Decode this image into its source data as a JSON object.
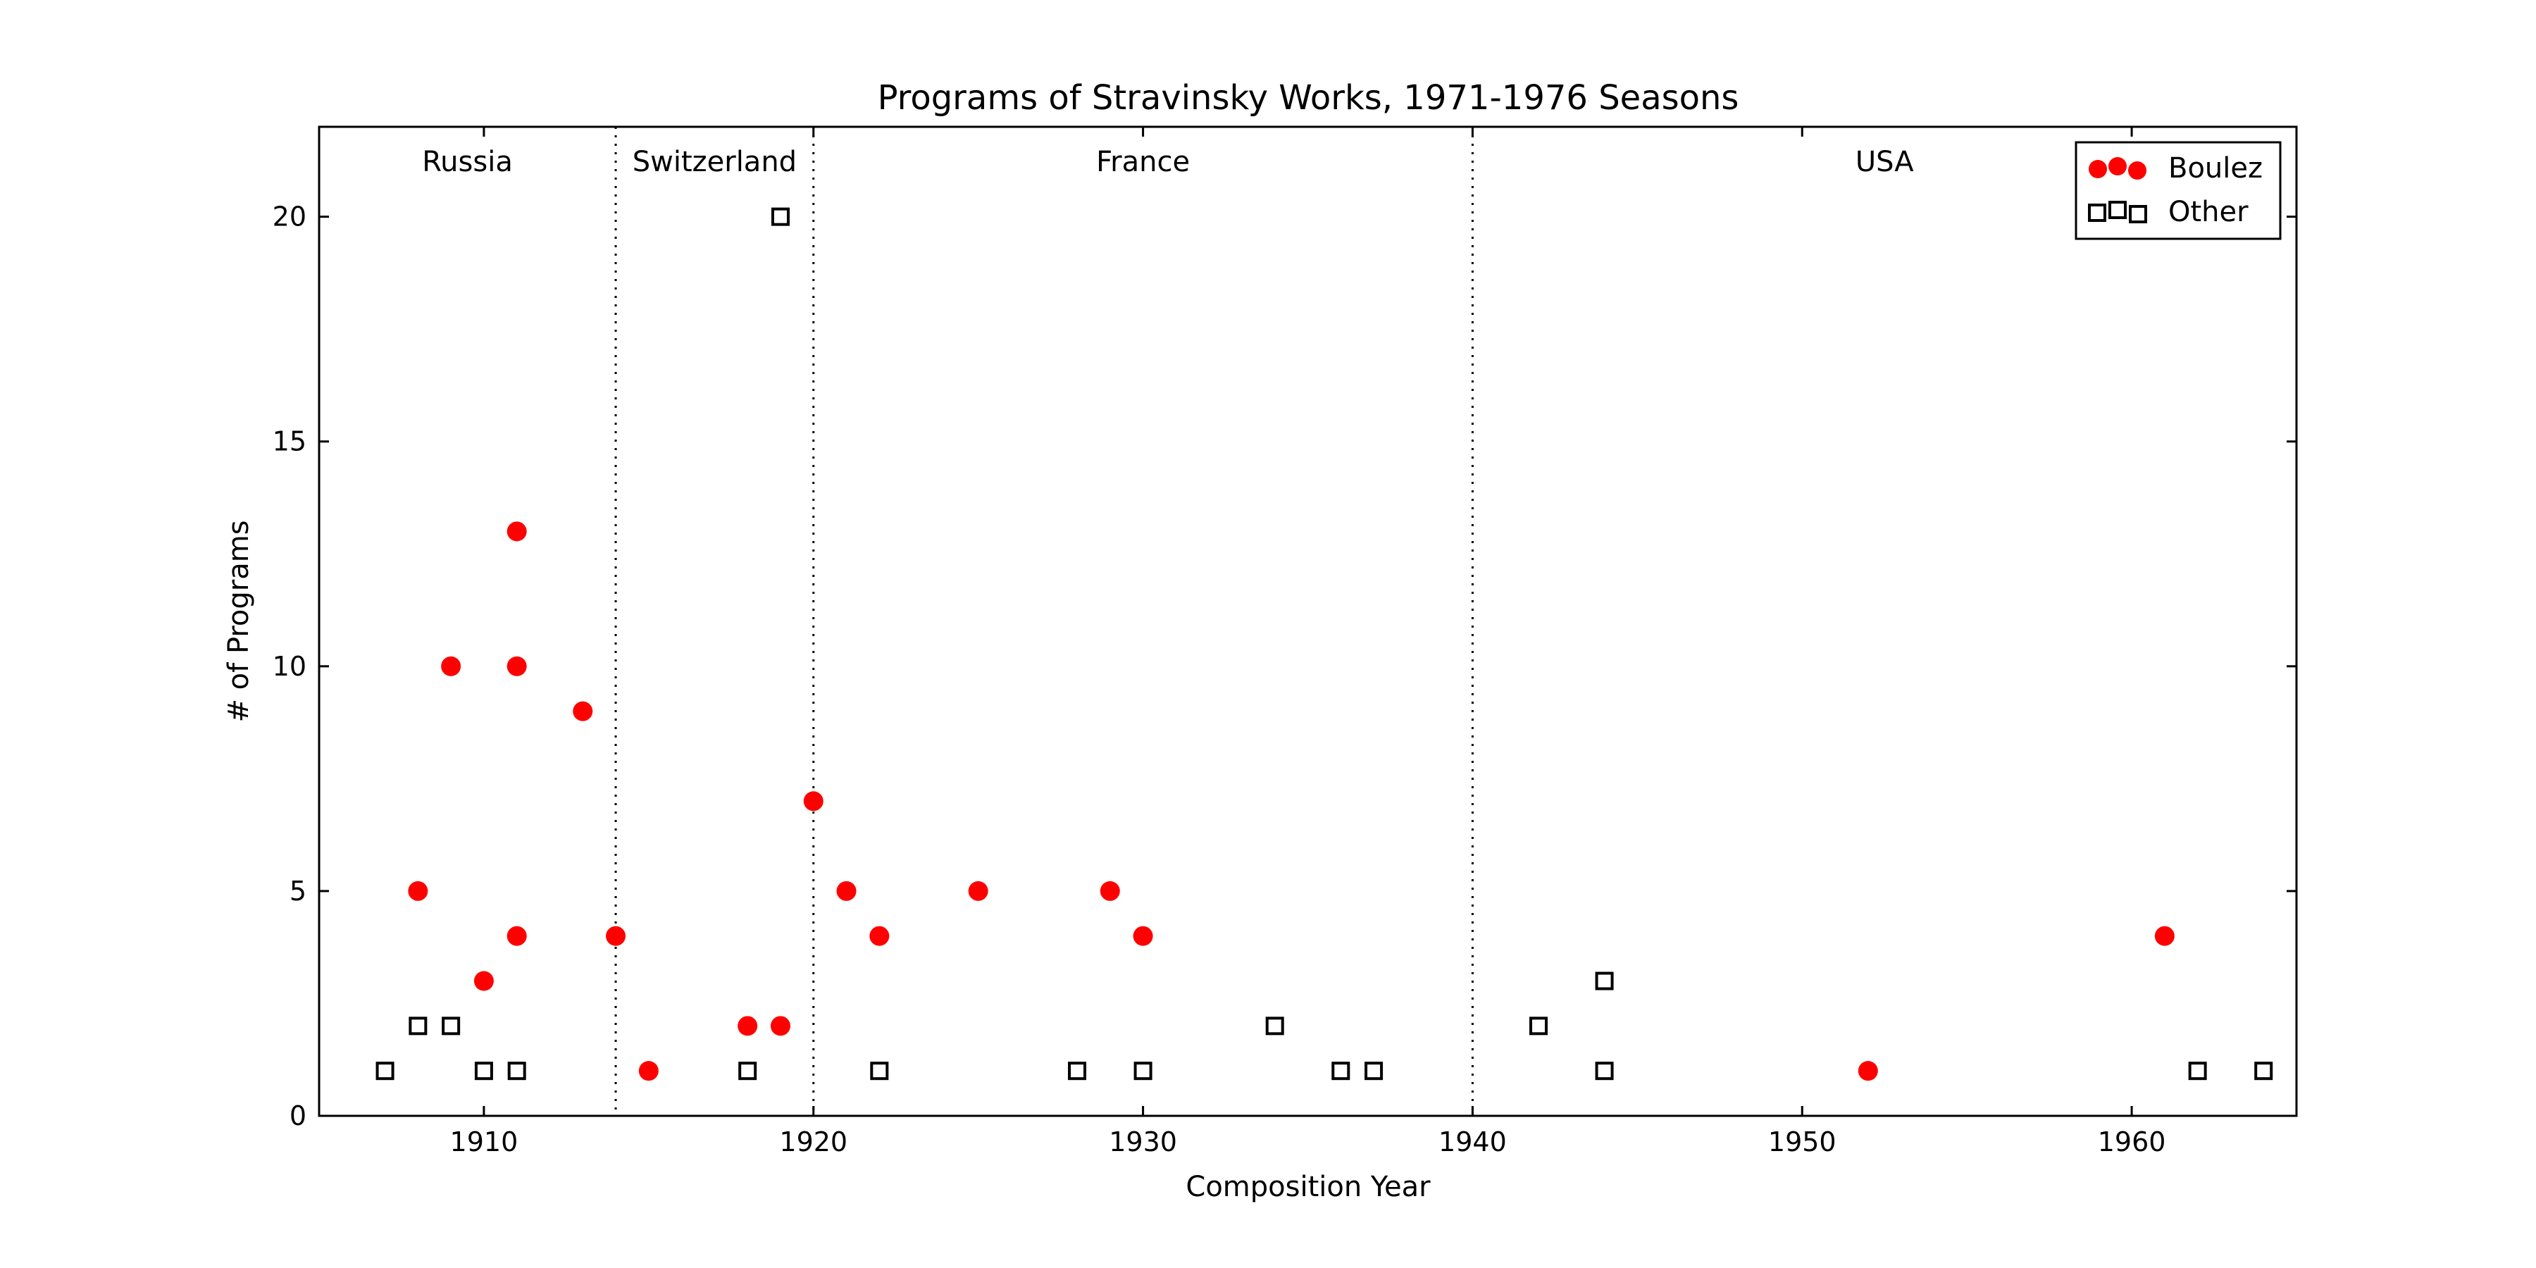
{
  "chart_data": {
    "type": "scatter",
    "title": "Programs of Stravinsky Works, 1971-1976 Seasons",
    "xlabel": "Composition Year",
    "ylabel": "# of Programs",
    "xlim": [
      1905,
      1965
    ],
    "ylim": [
      0,
      22
    ],
    "xticks": [
      1910,
      1920,
      1930,
      1940,
      1950,
      1960
    ],
    "yticks": [
      0,
      5,
      10,
      15,
      20
    ],
    "grid": false,
    "legend": "top-right",
    "period_dividers": [
      1914,
      1920,
      1940
    ],
    "periods": [
      {
        "label": "Russia",
        "x": 1909.5
      },
      {
        "label": "Switzerland",
        "x": 1917
      },
      {
        "label": "France",
        "x": 1930
      },
      {
        "label": "USA",
        "x": 1952.5
      }
    ],
    "series": [
      {
        "name": "Boulez",
        "marker": "circle",
        "color": "#ff0000",
        "points": [
          [
            1908,
            5
          ],
          [
            1909,
            10
          ],
          [
            1910,
            3
          ],
          [
            1911,
            13
          ],
          [
            1911,
            10
          ],
          [
            1911,
            4
          ],
          [
            1913,
            9
          ],
          [
            1914,
            4
          ],
          [
            1915,
            1
          ],
          [
            1918,
            2
          ],
          [
            1919,
            2
          ],
          [
            1920,
            7
          ],
          [
            1921,
            5
          ],
          [
            1922,
            4
          ],
          [
            1925,
            5
          ],
          [
            1929,
            5
          ],
          [
            1930,
            4
          ],
          [
            1952,
            1
          ],
          [
            1961,
            4
          ]
        ]
      },
      {
        "name": "Other",
        "marker": "square",
        "color": "#000000",
        "points": [
          [
            1907,
            1
          ],
          [
            1908,
            2
          ],
          [
            1909,
            2
          ],
          [
            1910,
            1
          ],
          [
            1911,
            1
          ],
          [
            1918,
            1
          ],
          [
            1919,
            20
          ],
          [
            1922,
            1
          ],
          [
            1928,
            1
          ],
          [
            1930,
            1
          ],
          [
            1934,
            2
          ],
          [
            1936,
            1
          ],
          [
            1937,
            1
          ],
          [
            1942,
            2
          ],
          [
            1944,
            3
          ],
          [
            1944,
            1
          ],
          [
            1962,
            1
          ],
          [
            1964,
            1
          ]
        ]
      }
    ]
  }
}
